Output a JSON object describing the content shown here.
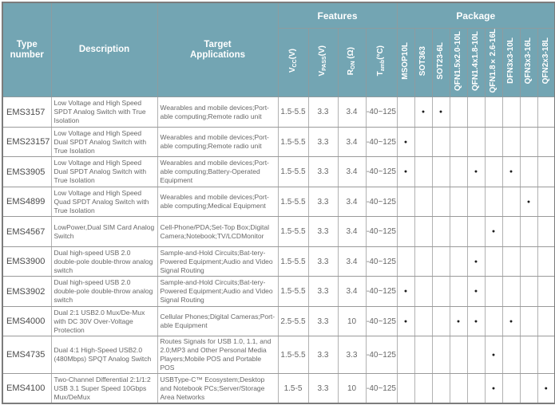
{
  "colors": {
    "header_bg": "#73a5b3",
    "header_text": "#ffffff",
    "grid_line": "#a8a8a8",
    "outer_border": "#7c7c7c",
    "body_text": "#676767",
    "type_text": "#4a4a4a",
    "dot": "#1d1d1d"
  },
  "table": {
    "header": {
      "type_number": "Type number",
      "description": "Description",
      "target_applications": "Target Applications",
      "features_group": "Features",
      "package_group": "Package",
      "feature_columns": [
        {
          "main": "V",
          "sub": "CC",
          "suffix": "(V)"
        },
        {
          "main": "V",
          "sub": "PASS",
          "suffix": "(V)"
        },
        {
          "main": "R",
          "sub": "ON",
          "suffix": " (Ω)"
        },
        {
          "main": "T",
          "sub": "amb",
          "suffix": "(°C)"
        }
      ],
      "package_columns": [
        "MSOP10L",
        "SOT363",
        "SOT23-6L",
        "QFN1.5x2.0-10L",
        "QFN1.4x1.8-10L",
        "QFN1.8×2.6-16L",
        "DFN3x3-10L",
        "QFN3x3-16L",
        "QFN2x3-18L"
      ]
    },
    "rows": [
      {
        "type": "EMS3157",
        "description": "Low Voltage and High Speed SPDT Analog Switch with True Isolation",
        "applications": "Wearables and mobile devices;Port-able computing;Remote radio unit",
        "vcc": "1.5-5.5",
        "vpass": "3.3",
        "ron": "3.4",
        "tamb": "-40~125",
        "packages": [
          "",
          "●",
          "●",
          "",
          "",
          "",
          "",
          "",
          ""
        ]
      },
      {
        "type": "EMS23157",
        "description": "Low Voltage and High Speed Dual SPDT Analog Switch with True Isolation",
        "applications": "Wearables and mobile devices;Port-able computing;Remote radio unit",
        "vcc": "1.5-5.5",
        "vpass": "3.3",
        "ron": "3.4",
        "tamb": "-40~125",
        "packages": [
          "●",
          "",
          "",
          "",
          "",
          "",
          "",
          "",
          ""
        ]
      },
      {
        "type": "EMS3905",
        "description": "Low Voltage and High Speed Dual SPDT Analog Switch with True Isolation",
        "applications": "Wearables and mobile devices;Port-able computing;Battery-Operated Equipment",
        "vcc": "1.5-5.5",
        "vpass": "3.3",
        "ron": "3.4",
        "tamb": "-40~125",
        "packages": [
          "●",
          "",
          "",
          "",
          "●",
          "",
          "●",
          "",
          ""
        ]
      },
      {
        "type": "EMS4899",
        "description": "Low Voltage and High Speed Quad SPDT Analog Switch with True Isolation",
        "applications": "Wearables and mobile devices;Port-able computing;Medical Equipment",
        "vcc": "1.5-5.5",
        "vpass": "3.3",
        "ron": "3.4",
        "tamb": "-40~125",
        "packages": [
          "",
          "",
          "",
          "",
          "",
          "",
          "",
          "●",
          ""
        ]
      },
      {
        "type": "EMS4567",
        "description": "LowPower,Dual SIM Card Analog Switch",
        "applications": "Cell-Phone/PDA;Set-Top Box;Digital Camera;Notebook;TV/LCDMonitor",
        "vcc": "1.5-5.5",
        "vpass": "3.3",
        "ron": "3.4",
        "tamb": "-40~125",
        "packages": [
          "",
          "",
          "",
          "",
          "",
          "●",
          "",
          "",
          ""
        ]
      },
      {
        "type": "EMS3900",
        "description": "Dual high-speed USB 2.0 double-pole double-throw analog switch",
        "applications": "Sample-and-Hold Circuits;Bat-tery-Powered Equipment;Audio and Video Signal Routing",
        "vcc": "1.5-5.5",
        "vpass": "3.3",
        "ron": "3.4",
        "tamb": "-40~125",
        "packages": [
          "",
          "",
          "",
          "",
          "●",
          "",
          "",
          "",
          ""
        ]
      },
      {
        "type": "EMS3902",
        "description": "Dual high-speed USB 2.0 double-pole double-throw analog switch",
        "applications": "Sample-and-Hold Circuits;Bat-tery-Powered Equipment;Audio and Video Signal Routing",
        "vcc": "1.5-5.5",
        "vpass": "3.3",
        "ron": "3.4",
        "tamb": "-40~125",
        "packages": [
          "●",
          "",
          "",
          "",
          "●",
          "",
          "",
          "",
          ""
        ]
      },
      {
        "type": "EMS4000",
        "description": "Dual 2:1 USB2.0 Mux/De-Mux with DC 30V Over-Voltage Protection",
        "applications": "Cellular Phones;Digital Cameras;Port-able Equipment",
        "vcc": "2.5-5.5",
        "vpass": "3.3",
        "ron": "10",
        "tamb": "-40~125",
        "packages": [
          "●",
          "",
          "",
          "●",
          "●",
          "",
          "●",
          "",
          ""
        ]
      },
      {
        "type": "EMS4735",
        "description": "Dual 4:1 High-Speed USB2.0 (480Mbps) SPQT Analog Switch",
        "applications": "Routes Signals for USB 1.0, 1.1, and 2.0;MP3 and Other Personal Media Players;Mobile POS and Portable POS",
        "vcc": "1.5-5.5",
        "vpass": "3.3",
        "ron": "3.3",
        "tamb": "-40~125",
        "packages": [
          "",
          "",
          "",
          "",
          "",
          "●",
          "",
          "",
          ""
        ]
      },
      {
        "type": "EMS4100",
        "description": "Two-Channel Differential 2:1/1:2 USB 3.1 Super Speed 10Gbps Mux/DeMux",
        "applications": "USBType-C™ Ecosystem;Desktop and Notebook PCs;Server/Storage Area Networks",
        "vcc": "1.5-5",
        "vpass": "3.3",
        "ron": "10",
        "tamb": "-40~125",
        "packages": [
          "",
          "",
          "",
          "",
          "",
          "●",
          "",
          "",
          "●"
        ]
      }
    ]
  }
}
